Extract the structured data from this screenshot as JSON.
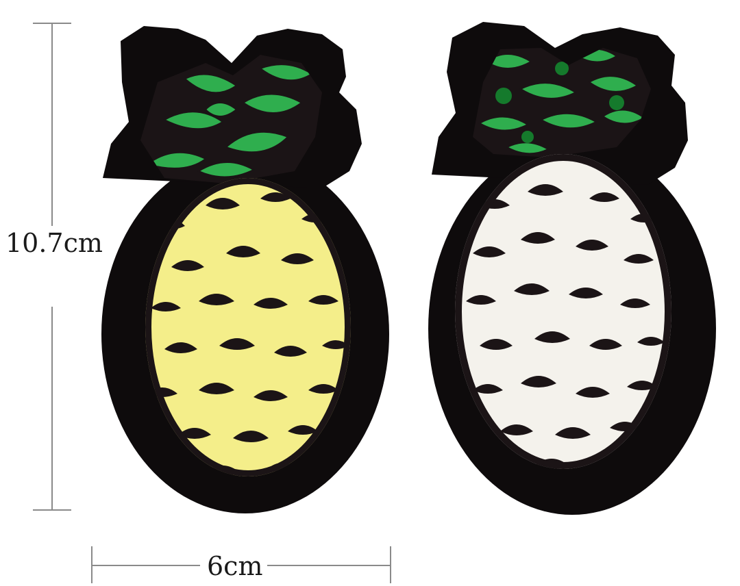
{
  "dimensions": {
    "height_label": "10.7cm",
    "width_label": "6cm"
  },
  "colors": {
    "background": "#ffffff",
    "felt": "#0e0b0c",
    "leaf_green": "#2fae4e",
    "leaf_green_dark": "#157a2c",
    "sequin_yellow": "#f4ee8a",
    "sequin_white": "#f4f2ec",
    "sequin_black": "#1b1416",
    "dimension_line": "#8a8a8a"
  },
  "patches": [
    {
      "name": "pineapple-patch-yellow",
      "side": "left",
      "body_color": "yellow"
    },
    {
      "name": "pineapple-patch-white",
      "side": "right",
      "body_color": "white"
    }
  ]
}
